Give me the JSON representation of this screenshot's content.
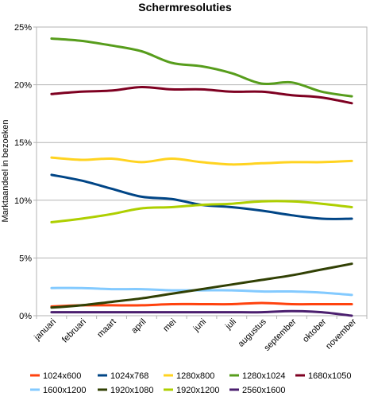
{
  "chart_data": {
    "type": "line",
    "title": "Schermresoluties",
    "xlabel": "",
    "ylabel": "Marktaandeel in bezoeken",
    "ylim": [
      0,
      25
    ],
    "yticks": [
      "0%",
      "5%",
      "10%",
      "15%",
      "20%",
      "25%"
    ],
    "grid": "horizontal",
    "legend": "bottom",
    "categories": [
      "januari",
      "februari",
      "maart",
      "april",
      "mei",
      "juni",
      "juli",
      "augustus",
      "september",
      "oktober",
      "november"
    ],
    "series": [
      {
        "name": "1024x600",
        "color": "#ff420e",
        "values": [
          0.8,
          0.9,
          0.9,
          0.9,
          1.0,
          1.0,
          1.0,
          1.1,
          1.0,
          1.0,
          1.0
        ]
      },
      {
        "name": "1024x768",
        "color": "#004586",
        "values": [
          12.2,
          11.7,
          11.0,
          10.3,
          10.1,
          9.6,
          9.4,
          9.1,
          8.7,
          8.4,
          8.4
        ]
      },
      {
        "name": "1280x800",
        "color": "#ffd320",
        "values": [
          13.7,
          13.5,
          13.6,
          13.3,
          13.6,
          13.3,
          13.1,
          13.2,
          13.3,
          13.3,
          13.4
        ]
      },
      {
        "name": "1280x1024",
        "color": "#579d1c",
        "values": [
          24.0,
          23.8,
          23.4,
          22.9,
          21.9,
          21.6,
          21.0,
          20.1,
          20.2,
          19.4,
          19.0
        ]
      },
      {
        "name": "1680x1050",
        "color": "#7e0021",
        "values": [
          19.2,
          19.4,
          19.5,
          19.8,
          19.6,
          19.6,
          19.4,
          19.4,
          19.1,
          18.9,
          18.4
        ]
      },
      {
        "name": "1600x1200",
        "color": "#83caff",
        "values": [
          2.4,
          2.4,
          2.3,
          2.3,
          2.2,
          2.2,
          2.2,
          2.1,
          2.1,
          2.0,
          1.8
        ]
      },
      {
        "name": "1920x1080",
        "color": "#314004",
        "values": [
          0.7,
          0.9,
          1.2,
          1.5,
          1.9,
          2.3,
          2.7,
          3.1,
          3.5,
          4.0,
          4.5
        ]
      },
      {
        "name": "1920x1200",
        "color": "#aecf00",
        "values": [
          8.1,
          8.4,
          8.8,
          9.3,
          9.4,
          9.6,
          9.7,
          9.9,
          9.9,
          9.7,
          9.4
        ]
      },
      {
        "name": "2560x1600",
        "color": "#4b1f6f",
        "values": [
          0.3,
          0.3,
          0.3,
          0.3,
          0.3,
          0.3,
          0.3,
          0.3,
          0.4,
          0.3,
          0.0
        ]
      }
    ]
  }
}
